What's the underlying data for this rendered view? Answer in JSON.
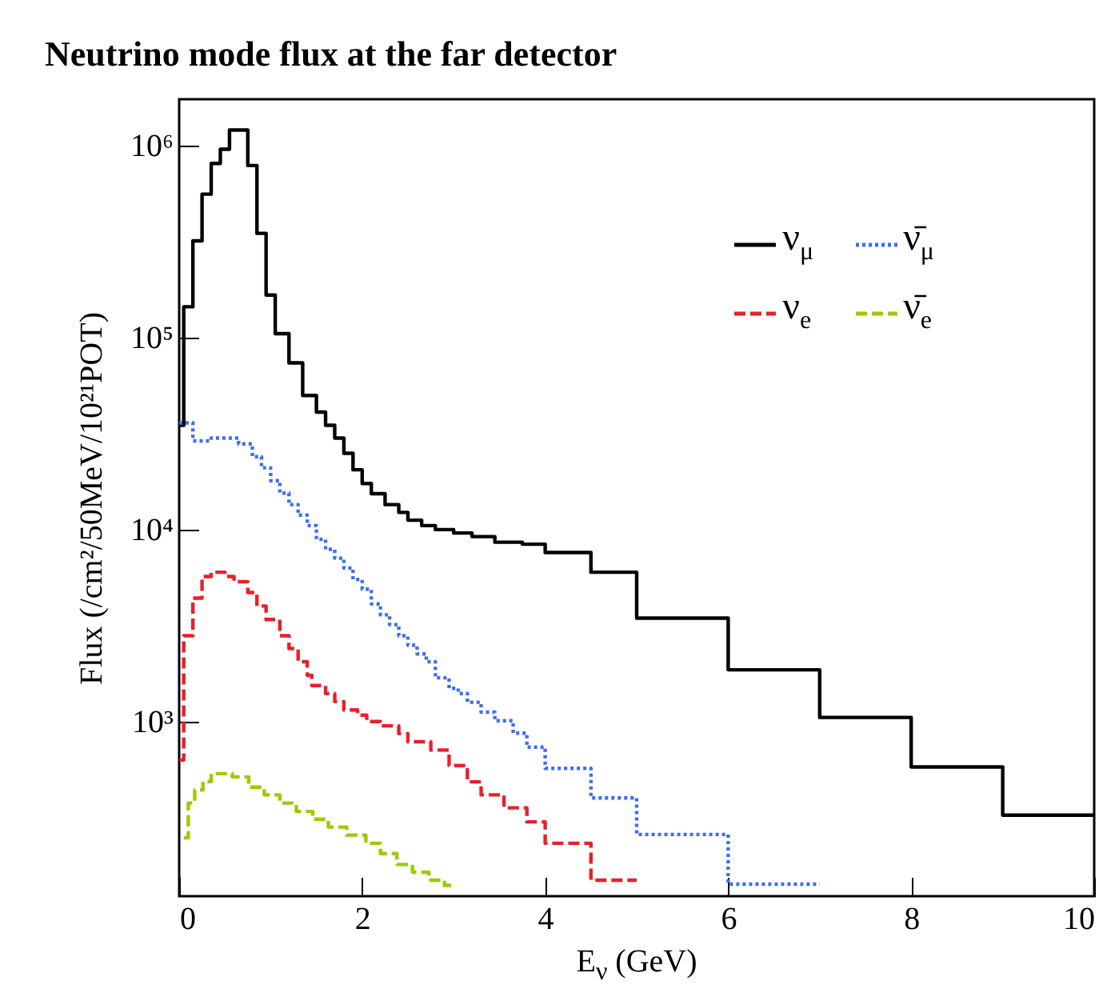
{
  "chart_data": {
    "type": "step",
    "title": "Neutrino mode flux at the far detector",
    "xlabel": "E$_{ν}$ (GeV)",
    "ylabel": "Flux (/cm²/50MeV/10²¹POT)",
    "xlim": [
      0,
      10
    ],
    "xticks": [
      0,
      2,
      4,
      6,
      8,
      10
    ],
    "ylim": [
      123,
      1750000
    ],
    "log": true,
    "yticks": [
      {
        "value": 1000,
        "label": "10³"
      },
      {
        "value": 10000,
        "label": "10⁴"
      },
      {
        "value": 100000,
        "label": "10⁵"
      },
      {
        "value": 1000000,
        "label": "10⁶"
      }
    ],
    "legend": "top right",
    "series": [
      {
        "name": "ν$_{μ}$",
        "color": "#000000",
        "line_style": "solid",
        "x": [
          0,
          0.05,
          0.15,
          0.25,
          0.35,
          0.45,
          0.55,
          0.75,
          0.85,
          0.95,
          1.05,
          1.2,
          1.35,
          1.5,
          1.6,
          1.7,
          1.8,
          1.9,
          2.0,
          2.1,
          2.25,
          2.4,
          2.5,
          2.65,
          2.8,
          3.0,
          3.2,
          3.45,
          3.75,
          4.0,
          4.5,
          5,
          6,
          7,
          8,
          9,
          10
        ],
        "values": [
          35000,
          145000,
          320000,
          560000,
          810000,
          960000,
          1210000,
          790000,
          350000,
          167000,
          105000,
          74000,
          50000,
          41000,
          35000,
          30000,
          25000,
          20500,
          17400,
          15400,
          13500,
          12300,
          11200,
          10500,
          10000,
          9600,
          9200,
          8600,
          8400,
          7600,
          6000,
          3460,
          1860,
          1050,
          580,
          325,
          325
        ]
      },
      {
        "name": "ν̄$_{μ}$",
        "color": "#3b6ef0",
        "line_style": "dotted",
        "x": [
          0,
          0.15,
          0.35,
          0.65,
          0.8,
          0.9,
          1.0,
          1.1,
          1.2,
          1.3,
          1.4,
          1.5,
          1.6,
          1.7,
          1.8,
          1.9,
          2.0,
          2.1,
          2.2,
          2.3,
          2.4,
          2.5,
          2.6,
          2.7,
          2.8,
          2.95,
          3.05,
          3.15,
          3.3,
          3.45,
          3.65,
          3.8,
          4.0,
          4.5,
          5,
          6,
          7
        ],
        "values": [
          36000,
          29000,
          30000,
          28000,
          24000,
          21000,
          18000,
          15500,
          13500,
          11900,
          10500,
          8900,
          7900,
          7100,
          6300,
          5500,
          4900,
          4100,
          3600,
          3200,
          2800,
          2500,
          2250,
          2050,
          1690,
          1490,
          1400,
          1260,
          1120,
          1010,
          870,
          735,
          570,
          400,
          258,
          142,
          142
        ]
      },
      {
        "name": "ν$_{e}$",
        "color": "#e8202a",
        "line_style": "dashed",
        "x": [
          0,
          0.05,
          0.15,
          0.25,
          0.35,
          0.5,
          0.6,
          0.75,
          0.85,
          0.95,
          1.1,
          1.2,
          1.3,
          1.4,
          1.45,
          1.6,
          1.7,
          1.8,
          1.95,
          2.05,
          2.2,
          2.4,
          2.5,
          2.75,
          2.95,
          3.15,
          3.3,
          3.55,
          3.8,
          4.0,
          4.5,
          5
        ],
        "values": [
          630,
          2800,
          4400,
          5700,
          6000,
          5700,
          5350,
          4700,
          4000,
          3400,
          2800,
          2400,
          2050,
          1740,
          1540,
          1400,
          1270,
          1150,
          1080,
          1000,
          950,
          865,
          785,
          710,
          590,
          485,
          415,
          355,
          300,
          232,
          149,
          149
        ]
      },
      {
        "name": "ν̄$_{e}$",
        "color": "#99cc00",
        "line_style": "dashed",
        "x": [
          0.05,
          0.1,
          0.17,
          0.26,
          0.35,
          0.58,
          0.76,
          0.93,
          1.1,
          1.28,
          1.46,
          1.63,
          1.83,
          2.04,
          2.2,
          2.38,
          2.55,
          2.73,
          2.9,
          3.0
        ],
        "values": [
          248,
          376,
          440,
          487,
          535,
          515,
          455,
          415,
          376,
          340,
          310,
          282,
          256,
          232,
          205,
          180,
          164,
          149,
          140,
          140
        ]
      }
    ]
  }
}
